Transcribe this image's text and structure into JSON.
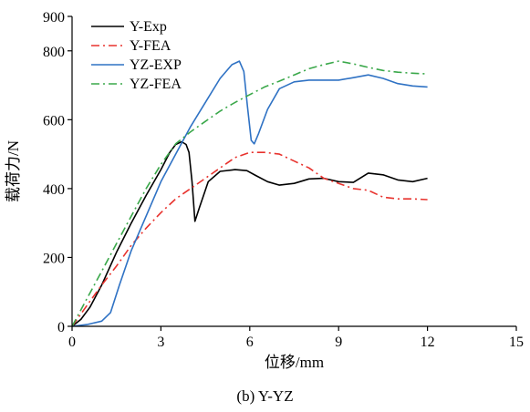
{
  "caption": "(b) Y-YZ",
  "chart_data": {
    "type": "line",
    "xlabel": "位移/mm",
    "ylabel": "载荷力/N",
    "xlim": [
      0,
      15
    ],
    "ylim": [
      0,
      900
    ],
    "xticks": [
      0,
      3,
      6,
      9,
      12,
      15
    ],
    "yticks": [
      0,
      200,
      400,
      600,
      800,
      900
    ],
    "grid": false,
    "legend_position": "top-left",
    "series": [
      {
        "name": "Y-Exp",
        "color": "#000000",
        "dash": "solid",
        "x": [
          0,
          0.3,
          0.6,
          1.0,
          1.5,
          2.0,
          2.5,
          3.0,
          3.3,
          3.5,
          3.7,
          3.85,
          3.95,
          4.05,
          4.15,
          4.3,
          4.6,
          5.0,
          5.5,
          5.9,
          6.2,
          6.6,
          7.0,
          7.5,
          8.0,
          8.5,
          9.0,
          9.5,
          10.0,
          10.5,
          11.0,
          11.5,
          12.0
        ],
        "y": [
          0,
          20,
          55,
          120,
          215,
          300,
          380,
          455,
          505,
          528,
          536,
          528,
          505,
          420,
          305,
          345,
          420,
          450,
          455,
          452,
          438,
          420,
          410,
          415,
          428,
          430,
          420,
          418,
          445,
          440,
          425,
          420,
          430
        ]
      },
      {
        "name": "Y-FEA",
        "color": "#e8322d",
        "dash": "dashdot",
        "x": [
          0,
          0.5,
          1.0,
          1.5,
          2.0,
          2.5,
          3.0,
          3.5,
          4.0,
          4.5,
          5.0,
          5.5,
          6.0,
          6.5,
          7.0,
          7.5,
          8.0,
          8.5,
          9.0,
          9.5,
          10.0,
          10.5,
          11.0,
          11.5,
          12.0
        ],
        "y": [
          0,
          60,
          120,
          175,
          235,
          285,
          330,
          370,
          400,
          430,
          460,
          490,
          505,
          505,
          500,
          480,
          460,
          430,
          415,
          400,
          395,
          375,
          370,
          370,
          368
        ]
      },
      {
        "name": "YZ-EXP",
        "color": "#2f72c4",
        "dash": "solid",
        "x": [
          0,
          0.5,
          1.0,
          1.3,
          1.6,
          2.0,
          2.5,
          3.0,
          3.5,
          4.0,
          4.5,
          5.0,
          5.4,
          5.65,
          5.8,
          5.92,
          6.05,
          6.15,
          6.3,
          6.6,
          7.0,
          7.5,
          8.0,
          8.5,
          9.0,
          9.5,
          10.0,
          10.5,
          11.0,
          11.5,
          12.0
        ],
        "y": [
          0,
          5,
          15,
          40,
          120,
          220,
          320,
          420,
          500,
          580,
          650,
          720,
          760,
          770,
          740,
          640,
          540,
          530,
          560,
          630,
          690,
          710,
          715,
          715,
          715,
          722,
          730,
          720,
          705,
          698,
          695
        ]
      },
      {
        "name": "YZ-FEA",
        "color": "#3aa84a",
        "dash": "dashdot",
        "x": [
          0,
          0.5,
          1.0,
          1.5,
          2.0,
          2.5,
          3.0,
          3.5,
          4.0,
          4.5,
          5.0,
          5.5,
          6.0,
          6.5,
          7.0,
          7.5,
          8.0,
          8.5,
          9.0,
          9.5,
          10.0,
          10.5,
          11.0,
          11.5,
          12.0
        ],
        "y": [
          0,
          80,
          160,
          240,
          320,
          400,
          470,
          530,
          565,
          595,
          625,
          650,
          673,
          695,
          712,
          730,
          748,
          760,
          770,
          762,
          752,
          743,
          738,
          735,
          733
        ]
      }
    ]
  }
}
